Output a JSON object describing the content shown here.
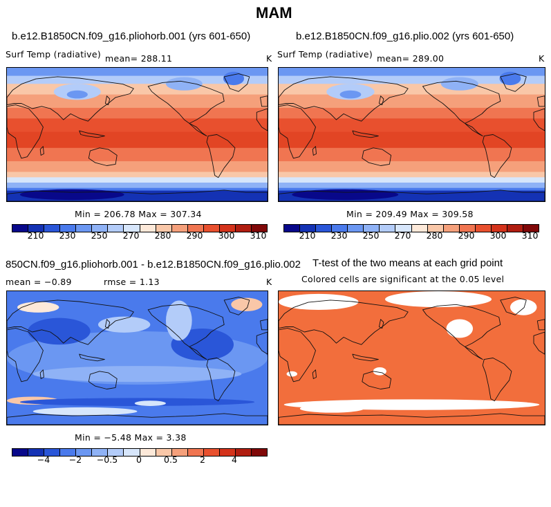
{
  "title": "MAM",
  "panels": {
    "p1": {
      "title": "b.e12.B1850CN.f09_g16.pliohorb.001 (yrs 601-650)",
      "variable": "Surf Temp (radiative)",
      "mean": "mean= 288.11",
      "unit": "K",
      "minmax": "Min = 206.78 Max = 307.34"
    },
    "p2": {
      "title": "b.e12.B1850CN.f09_g16.plio.002 (yrs 601-650)",
      "variable": "Surf Temp (radiative)",
      "mean": "mean= 289.00",
      "unit": "K",
      "minmax": "Min = 209.49 Max = 309.58"
    },
    "p3": {
      "title": "850CN.f09_g16.pliohorb.001 - b.e12.B1850CN.f09_g16.plio.002",
      "mean": "mean =  −0.89",
      "rmse": "rmse =   1.13",
      "unit": "K",
      "minmax": "Min =  −5.48 Max =   3.38"
    },
    "p4": {
      "title": "T-test of the two means at each grid point",
      "subtitle": "Colored cells are significant at the 0.05 level"
    }
  },
  "colorbars": {
    "abs": {
      "colors": [
        "#08088a",
        "#1432b4",
        "#2a56d8",
        "#4a7aec",
        "#6b97f2",
        "#8fb2f6",
        "#b3ccf9",
        "#d7e6fb",
        "#fde9d9",
        "#f9c7a8",
        "#f5a07b",
        "#f07551",
        "#e8502e",
        "#d4331b",
        "#b01d10",
        "#800808"
      ],
      "labels": [
        "210",
        "230",
        "250",
        "270",
        "280",
        "290",
        "300",
        "310"
      ]
    },
    "diff": {
      "colors": [
        "#08088a",
        "#1432b4",
        "#2a56d8",
        "#4a7aec",
        "#6b97f2",
        "#8fb2f6",
        "#b3ccf9",
        "#d7e6fb",
        "#fde9d9",
        "#f9c7a8",
        "#f5a07b",
        "#f07551",
        "#e8502e",
        "#d4331b",
        "#b01d10",
        "#800808"
      ],
      "labels": [
        "−4",
        "−2",
        "−0.5",
        "0",
        "0.5",
        "2",
        "4"
      ]
    }
  },
  "colors": {
    "significant": "#f26e3c",
    "ocean_warm": "#e84a28",
    "diff_base": "#4a7aec",
    "coast": "#111111"
  }
}
